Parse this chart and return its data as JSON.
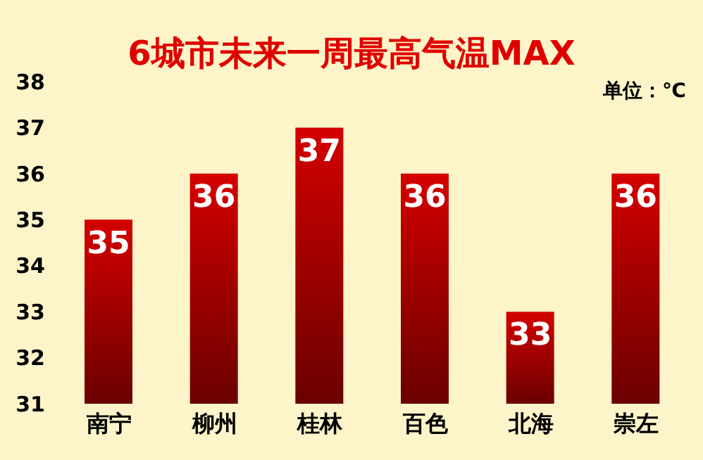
{
  "chart_data": {
    "type": "bar",
    "title": "6城市未来一周最高气温MAX",
    "annotations": [
      "单位：℃"
    ],
    "categories": [
      "南宁",
      "柳州",
      "桂林",
      "百色",
      "北海",
      "崇左"
    ],
    "values": [
      35,
      36,
      37,
      36,
      33,
      36
    ],
    "color": "#d40000",
    "ylim": [
      31,
      38
    ],
    "yticks": [
      31,
      32,
      33,
      34,
      35,
      36,
      37,
      38
    ],
    "grid": false,
    "data_labels": true
  }
}
